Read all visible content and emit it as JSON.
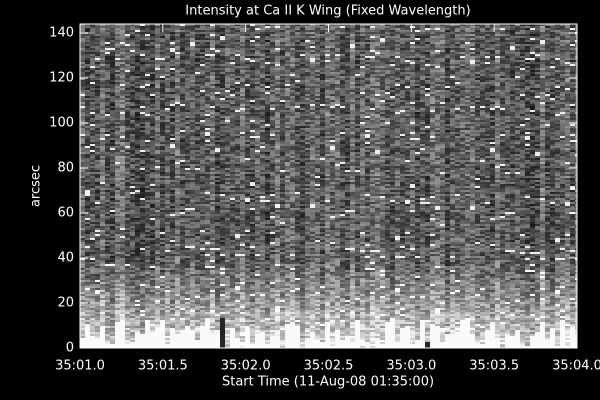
{
  "chart_data": {
    "type": "image",
    "title": "Intensity at Ca II K Wing (Fixed Wavelength)",
    "x_label": "Start Time (11-Aug-08 01:35:00)",
    "y_label": "arcsec",
    "xlim": [
      61.0,
      64.0
    ],
    "xticks": [
      {
        "value": 61.0,
        "label": "35:01.0"
      },
      {
        "value": 61.5,
        "label": "35:01.5"
      },
      {
        "value": 62.0,
        "label": "35:02.0"
      },
      {
        "value": 62.5,
        "label": "35:02.5"
      },
      {
        "value": 63.0,
        "label": "35:03.0"
      },
      {
        "value": 63.5,
        "label": "35:03.5"
      },
      {
        "value": 64.0,
        "label": "35:04.0"
      }
    ],
    "ylim": [
      0,
      144
    ],
    "yticks": [
      0,
      20,
      40,
      60,
      80,
      100,
      120,
      140
    ]
  }
}
